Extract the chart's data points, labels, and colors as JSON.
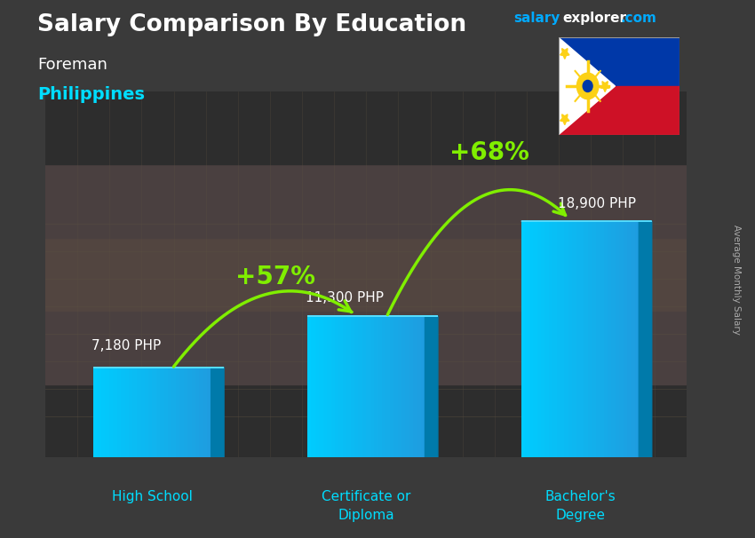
{
  "title_main": "Salary Comparison By Education",
  "subtitle1": "Foreman",
  "subtitle2": "Philippines",
  "ylabel_rotated": "Average Monthly Salary",
  "categories": [
    "High School",
    "Certificate or\nDiploma",
    "Bachelor's\nDegree"
  ],
  "values": [
    7180,
    11300,
    18900
  ],
  "value_labels": [
    "7,180 PHP",
    "11,300 PHP",
    "18,900 PHP"
  ],
  "bar_color_main": "#00BFFF",
  "bar_color_light": "#33D4FF",
  "bar_color_dark": "#0099CC",
  "bar_color_side": "#007AAA",
  "arrow1_text": "+57%",
  "arrow2_text": "+68%",
  "arrow_color": "#80EE00",
  "arrow_head_color": "#44CC00",
  "title_color": "#FFFFFF",
  "subtitle1_color": "#FFFFFF",
  "subtitle2_color": "#00DDFF",
  "value_label_color": "#FFFFFF",
  "xlabel_color": "#00DDFF",
  "website_salary_color": "#00AAFF",
  "website_explorer_color": "#FFFFFF",
  "website_com_color": "#00AAFF",
  "ylabel_color": "#AAAAAA",
  "bg_color": "#3a3a3a",
  "figsize": [
    8.5,
    6.06
  ],
  "dpi": 100
}
